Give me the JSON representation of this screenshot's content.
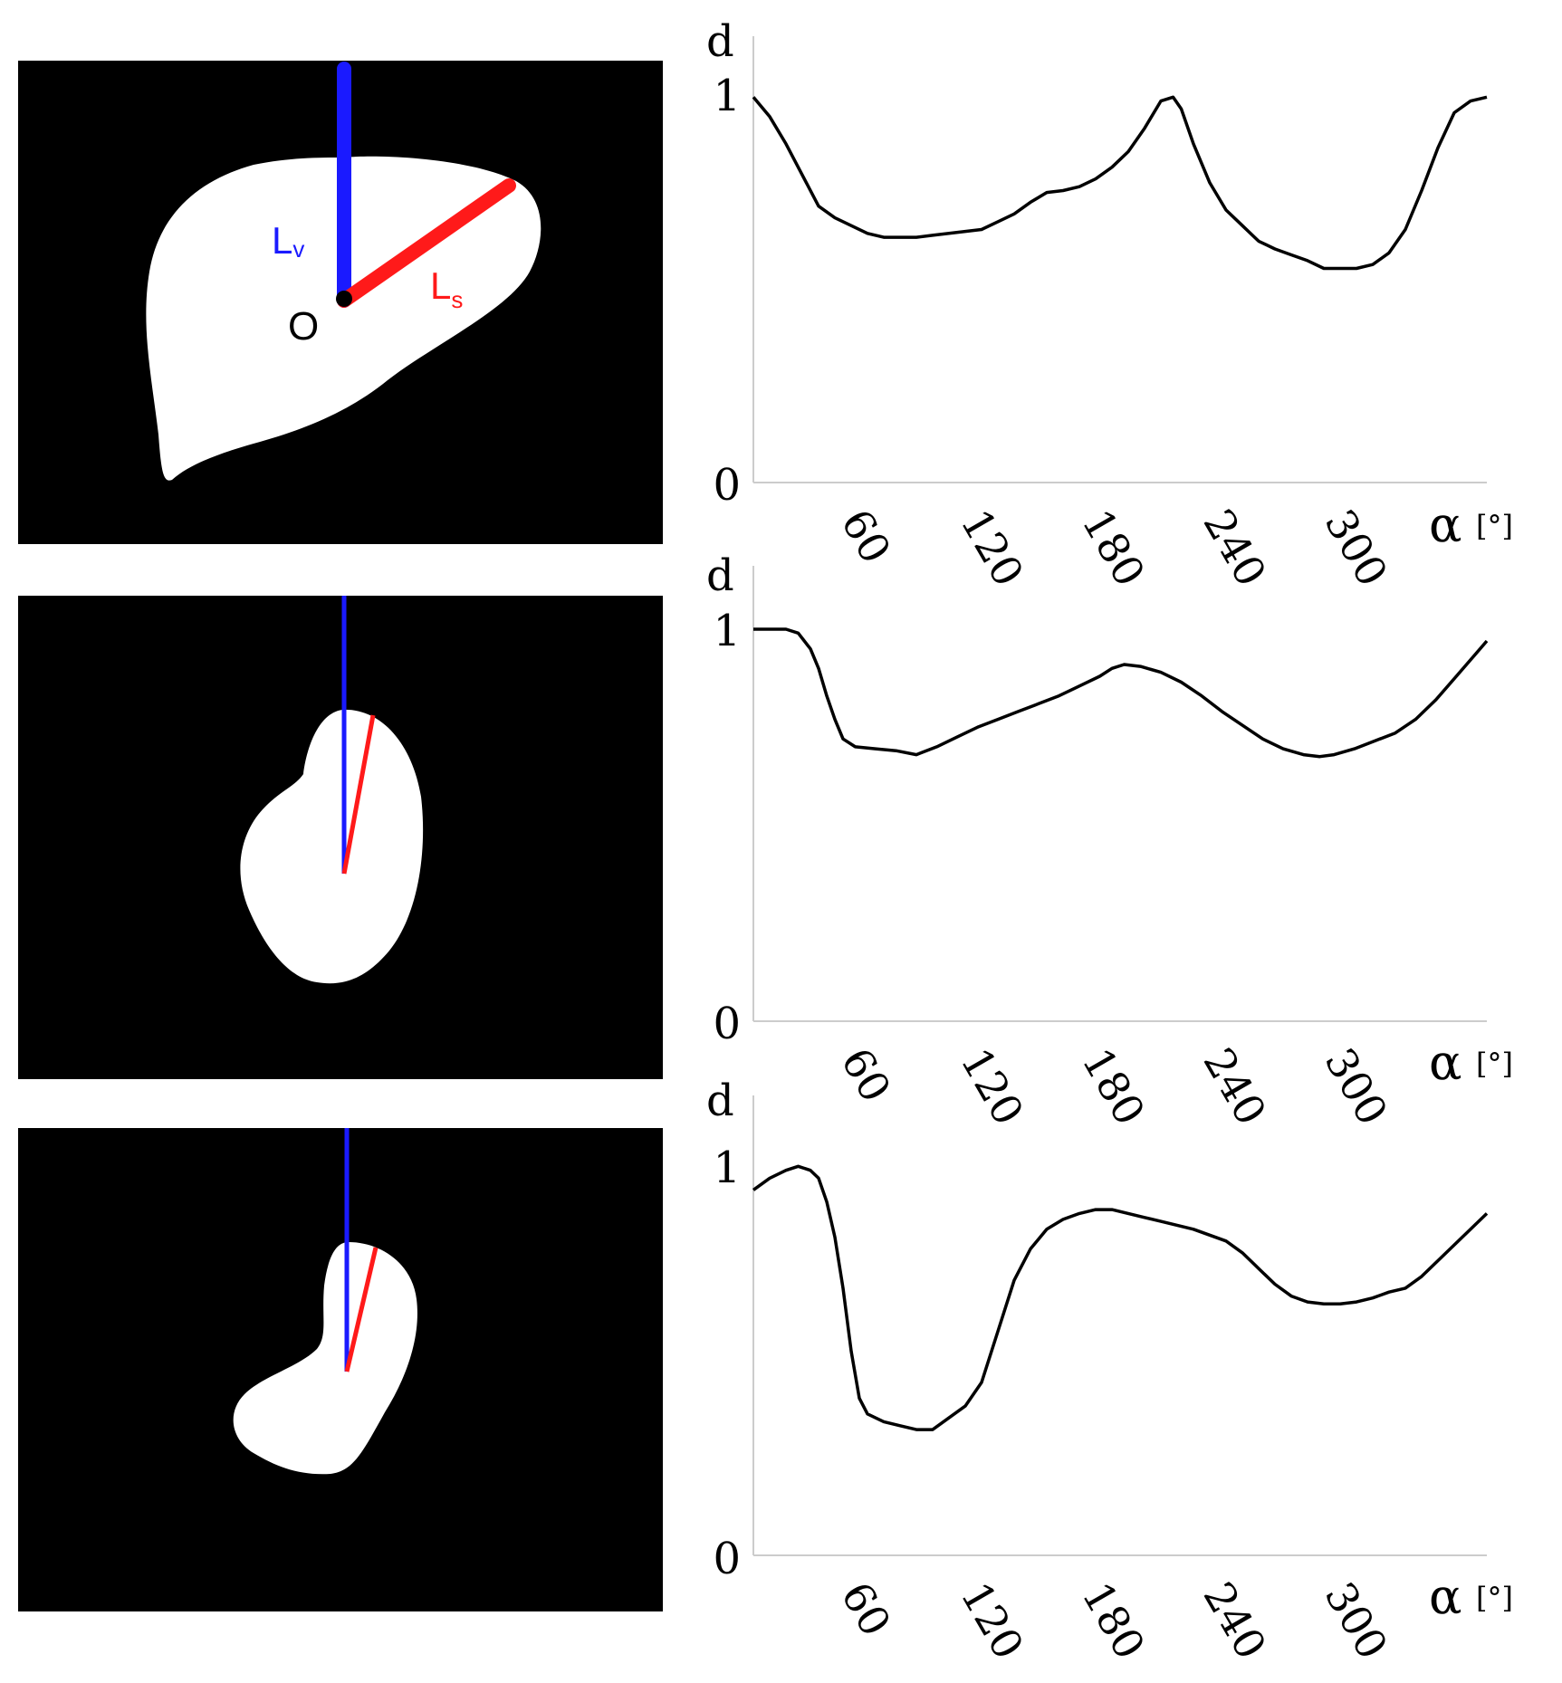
{
  "figure": {
    "panels": [
      {
        "image": {
          "point_label": "O",
          "vertical_label": "L",
          "vertical_subscript": "v",
          "shape_label": "L",
          "shape_subscript": "s",
          "vertical_color": "#1a1aff",
          "shape_color": "#ff1a1a"
        }
      },
      {
        "image": {
          "vertical_color": "#1a1aff",
          "shape_color": "#ff1a1a"
        }
      },
      {
        "image": {
          "vertical_color": "#1a1aff",
          "shape_color": "#ff1a1a"
        }
      }
    ]
  },
  "chart_data": [
    {
      "type": "line",
      "ylabel": "d",
      "xlabel": "α",
      "xunit": "[°]",
      "xlim": [
        0,
        360
      ],
      "ylim": [
        0,
        1
      ],
      "xticks": [
        60,
        120,
        180,
        240,
        300
      ],
      "yticks": [
        0,
        1
      ],
      "grid": false,
      "series": [
        {
          "x": [
            0,
            8,
            16,
            24,
            32,
            40,
            48,
            56,
            64,
            72,
            80,
            88,
            96,
            104,
            112,
            120,
            128,
            136,
            144,
            152,
            160,
            168,
            176,
            184,
            192,
            200,
            206,
            210,
            216,
            224,
            232,
            240,
            248,
            256,
            264,
            272,
            280,
            288,
            296,
            304,
            312,
            320,
            328,
            336,
            344,
            352,
            360
          ],
          "y": [
            0.99,
            0.94,
            0.87,
            0.79,
            0.71,
            0.68,
            0.66,
            0.64,
            0.63,
            0.63,
            0.63,
            0.635,
            0.64,
            0.645,
            0.65,
            0.67,
            0.69,
            0.72,
            0.745,
            0.75,
            0.76,
            0.78,
            0.81,
            0.85,
            0.91,
            0.98,
            0.99,
            0.96,
            0.87,
            0.77,
            0.7,
            0.66,
            0.62,
            0.6,
            0.585,
            0.57,
            0.55,
            0.55,
            0.55,
            0.56,
            0.59,
            0.65,
            0.75,
            0.86,
            0.95,
            0.98,
            0.99
          ]
        }
      ]
    },
    {
      "type": "line",
      "ylabel": "d",
      "xlabel": "α",
      "xunit": "[°]",
      "xlim": [
        0,
        360
      ],
      "ylim": [
        0,
        1
      ],
      "xticks": [
        60,
        120,
        180,
        240,
        300
      ],
      "yticks": [
        0,
        1
      ],
      "grid": false,
      "series": [
        {
          "x": [
            0,
            10,
            16,
            22,
            28,
            32,
            36,
            40,
            44,
            50,
            60,
            70,
            80,
            90,
            100,
            110,
            120,
            130,
            140,
            150,
            160,
            170,
            176,
            182,
            190,
            200,
            210,
            220,
            230,
            240,
            250,
            260,
            270,
            278,
            285,
            295,
            305,
            315,
            325,
            335,
            345,
            355,
            360
          ],
          "y": [
            1.0,
            1.0,
            1.0,
            0.99,
            0.95,
            0.9,
            0.83,
            0.77,
            0.72,
            0.7,
            0.695,
            0.69,
            0.68,
            0.7,
            0.725,
            0.75,
            0.77,
            0.79,
            0.81,
            0.83,
            0.855,
            0.88,
            0.9,
            0.91,
            0.905,
            0.89,
            0.865,
            0.83,
            0.79,
            0.755,
            0.72,
            0.695,
            0.68,
            0.675,
            0.68,
            0.695,
            0.715,
            0.735,
            0.77,
            0.82,
            0.88,
            0.94,
            0.97
          ]
        }
      ]
    },
    {
      "type": "line",
      "ylabel": "d",
      "xlabel": "α",
      "xunit": "[°]",
      "xlim": [
        0,
        360
      ],
      "ylim": [
        0,
        1
      ],
      "xticks": [
        60,
        120,
        180,
        240,
        300
      ],
      "yticks": [
        0,
        1
      ],
      "grid": false,
      "series": [
        {
          "x": [
            0,
            8,
            16,
            22,
            28,
            32,
            36,
            40,
            44,
            48,
            52,
            56,
            64,
            72,
            80,
            88,
            96,
            104,
            112,
            120,
            128,
            136,
            144,
            152,
            160,
            168,
            176,
            184,
            192,
            200,
            208,
            216,
            224,
            232,
            240,
            248,
            256,
            264,
            272,
            280,
            288,
            296,
            304,
            312,
            320,
            328,
            336,
            344,
            352,
            360
          ],
          "y": [
            0.93,
            0.96,
            0.98,
            0.99,
            0.98,
            0.96,
            0.9,
            0.81,
            0.68,
            0.52,
            0.4,
            0.36,
            0.34,
            0.33,
            0.32,
            0.32,
            0.35,
            0.38,
            0.44,
            0.57,
            0.7,
            0.78,
            0.83,
            0.855,
            0.87,
            0.88,
            0.88,
            0.87,
            0.86,
            0.85,
            0.84,
            0.83,
            0.815,
            0.8,
            0.77,
            0.73,
            0.69,
            0.66,
            0.645,
            0.64,
            0.64,
            0.645,
            0.655,
            0.67,
            0.68,
            0.71,
            0.75,
            0.79,
            0.83,
            0.87
          ]
        }
      ]
    }
  ]
}
